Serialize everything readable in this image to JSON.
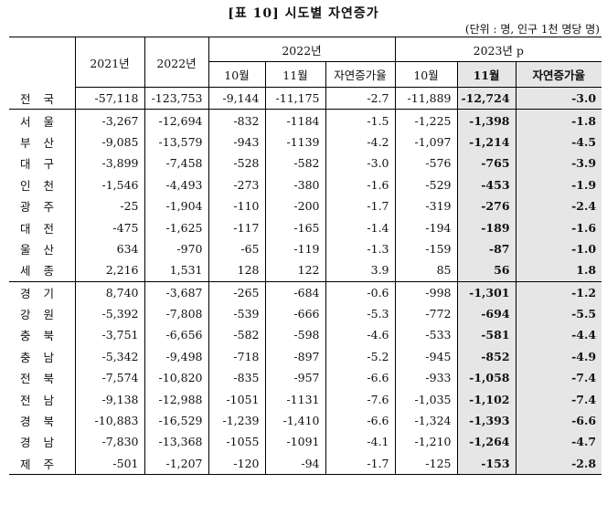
{
  "title": "[표 10] 시도별 자연증가",
  "unit": "(단위 : 명, 인구 1천 명당 명)",
  "headers": {
    "y2021": "2021년",
    "y2022": "2022년",
    "g2022": "2022년",
    "g2023": "2023년 p",
    "oct": "10월",
    "nov": "11월",
    "rate": "자연증가율",
    "oct2": "10월",
    "nov2": "11월",
    "rate2": "자연증가율"
  },
  "rows": [
    {
      "region": "전국",
      "y2021": "-57,118",
      "y2022": "-123,753",
      "oct22": "-9,144",
      "nov22": "-11,175",
      "rate22": "-2.7",
      "oct23": "-11,889",
      "nov23": "-12,724",
      "rate23": "-3.0"
    },
    {
      "region": "서울",
      "y2021": "-3,267",
      "y2022": "-12,694",
      "oct22": "-832",
      "nov22": "-1184",
      "rate22": "-1.5",
      "oct23": "-1,225",
      "nov23": "-1,398",
      "rate23": "-1.8"
    },
    {
      "region": "부산",
      "y2021": "-9,085",
      "y2022": "-13,579",
      "oct22": "-943",
      "nov22": "-1139",
      "rate22": "-4.2",
      "oct23": "-1,097",
      "nov23": "-1,214",
      "rate23": "-4.5"
    },
    {
      "region": "대구",
      "y2021": "-3,899",
      "y2022": "-7,458",
      "oct22": "-528",
      "nov22": "-582",
      "rate22": "-3.0",
      "oct23": "-576",
      "nov23": "-765",
      "rate23": "-3.9"
    },
    {
      "region": "인천",
      "y2021": "-1,546",
      "y2022": "-4,493",
      "oct22": "-273",
      "nov22": "-380",
      "rate22": "-1.6",
      "oct23": "-529",
      "nov23": "-453",
      "rate23": "-1.9"
    },
    {
      "region": "광주",
      "y2021": "-25",
      "y2022": "-1,904",
      "oct22": "-110",
      "nov22": "-200",
      "rate22": "-1.7",
      "oct23": "-319",
      "nov23": "-276",
      "rate23": "-2.4"
    },
    {
      "region": "대전",
      "y2021": "-475",
      "y2022": "-1,625",
      "oct22": "-117",
      "nov22": "-165",
      "rate22": "-1.4",
      "oct23": "-194",
      "nov23": "-189",
      "rate23": "-1.6"
    },
    {
      "region": "울산",
      "y2021": "634",
      "y2022": "-970",
      "oct22": "-65",
      "nov22": "-119",
      "rate22": "-1.3",
      "oct23": "-159",
      "nov23": "-87",
      "rate23": "-1.0"
    },
    {
      "region": "세종",
      "y2021": "2,216",
      "y2022": "1,531",
      "oct22": "128",
      "nov22": "122",
      "rate22": "3.9",
      "oct23": "85",
      "nov23": "56",
      "rate23": "1.8"
    },
    {
      "region": "경기",
      "y2021": "8,740",
      "y2022": "-3,687",
      "oct22": "-265",
      "nov22": "-684",
      "rate22": "-0.6",
      "oct23": "-998",
      "nov23": "-1,301",
      "rate23": "-1.2"
    },
    {
      "region": "강원",
      "y2021": "-5,392",
      "y2022": "-7,808",
      "oct22": "-539",
      "nov22": "-666",
      "rate22": "-5.3",
      "oct23": "-772",
      "nov23": "-694",
      "rate23": "-5.5"
    },
    {
      "region": "충북",
      "y2021": "-3,751",
      "y2022": "-6,656",
      "oct22": "-582",
      "nov22": "-598",
      "rate22": "-4.6",
      "oct23": "-533",
      "nov23": "-581",
      "rate23": "-4.4"
    },
    {
      "region": "충남",
      "y2021": "-5,342",
      "y2022": "-9,498",
      "oct22": "-718",
      "nov22": "-897",
      "rate22": "-5.2",
      "oct23": "-945",
      "nov23": "-852",
      "rate23": "-4.9"
    },
    {
      "region": "전북",
      "y2021": "-7,574",
      "y2022": "-10,820",
      "oct22": "-835",
      "nov22": "-957",
      "rate22": "-6.6",
      "oct23": "-933",
      "nov23": "-1,058",
      "rate23": "-7.4"
    },
    {
      "region": "전남",
      "y2021": "-9,138",
      "y2022": "-12,988",
      "oct22": "-1051",
      "nov22": "-1131",
      "rate22": "-7.6",
      "oct23": "-1,035",
      "nov23": "-1,102",
      "rate23": "-7.4"
    },
    {
      "region": "경북",
      "y2021": "-10,883",
      "y2022": "-16,529",
      "oct22": "-1,239",
      "nov22": "-1,410",
      "rate22": "-6.6",
      "oct23": "-1,324",
      "nov23": "-1,393",
      "rate23": "-6.6"
    },
    {
      "region": "경남",
      "y2021": "-7,830",
      "y2022": "-13,368",
      "oct22": "-1055",
      "nov22": "-1091",
      "rate22": "-4.1",
      "oct23": "-1,210",
      "nov23": "-1,264",
      "rate23": "-4.7"
    },
    {
      "region": "제주",
      "y2021": "-501",
      "y2022": "-1,207",
      "oct22": "-120",
      "nov22": "-94",
      "rate22": "-1.7",
      "oct23": "-125",
      "nov23": "-153",
      "rate23": "-2.8"
    }
  ]
}
